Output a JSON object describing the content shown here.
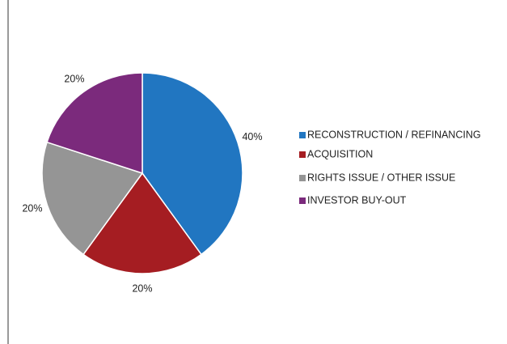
{
  "chart_data": {
    "type": "pie",
    "categories": [
      "RECONSTRUCTION / REFINANCING",
      "ACQUISITION",
      "RIGHTS ISSUE / OTHER ISSUE",
      "INVESTOR BUY-OUT"
    ],
    "values": [
      40,
      20,
      20,
      20
    ],
    "value_labels": [
      "40%",
      "20%",
      "20%",
      "20%"
    ],
    "colors": [
      "#2176c1",
      "#a51d22",
      "#959595",
      "#7b2a7c"
    ],
    "legend": "right"
  }
}
